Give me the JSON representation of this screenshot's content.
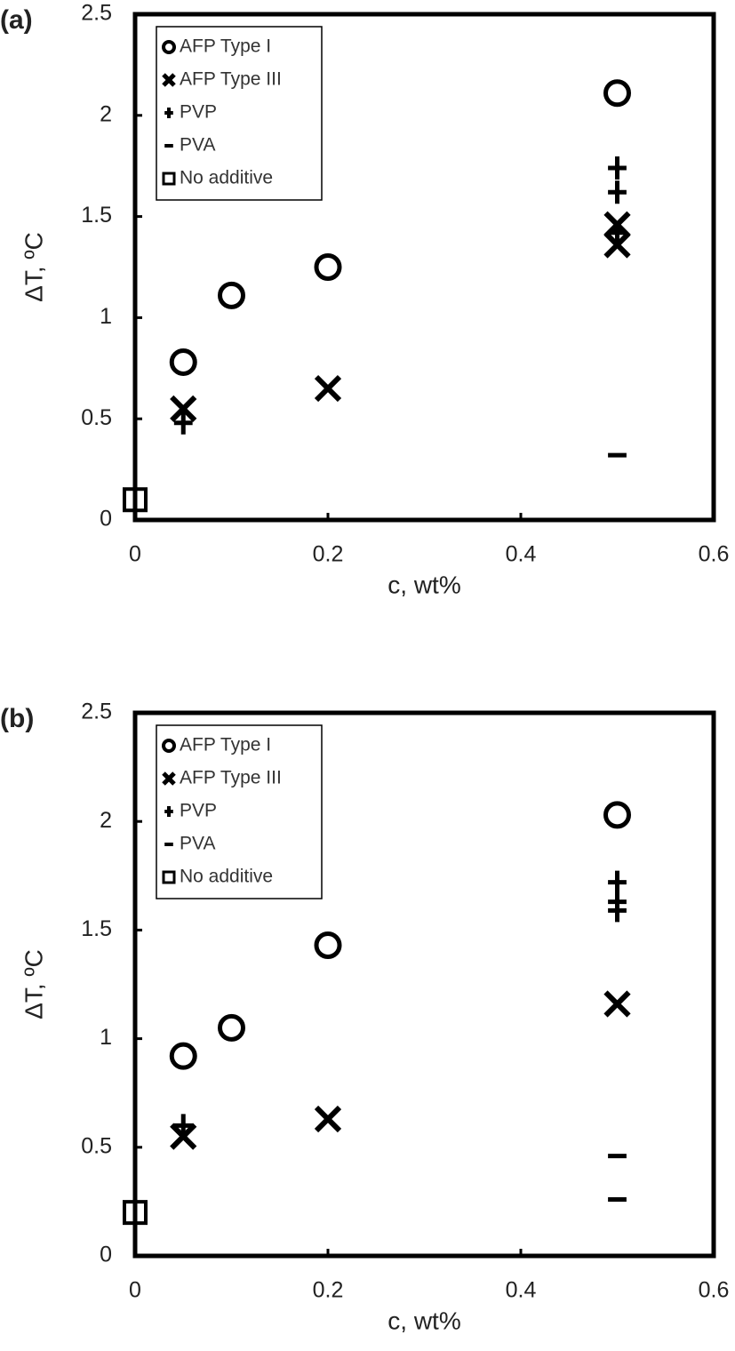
{
  "chart_data": [
    {
      "type": "scatter",
      "panel_label": "(a)",
      "x_label": "c, wt%",
      "y_label": "ΔT, ºC",
      "xlim": [
        0,
        0.6
      ],
      "xticks": [
        0,
        0.2,
        0.4,
        0.6
      ],
      "ylim": [
        0,
        2.5
      ],
      "yticks": [
        0,
        0.5,
        1,
        1.5,
        2,
        2.5
      ],
      "legend": "upper left",
      "series": [
        {
          "name": "AFP Type I",
          "marker": "circle",
          "color": "#000000",
          "x": [
            0.05,
            0.1,
            0.2,
            0.5
          ],
          "values": [
            0.78,
            1.11,
            1.25,
            2.11
          ]
        },
        {
          "name": "AFP Type III",
          "marker": "x",
          "color": "#000000",
          "x": [
            0.05,
            0.2,
            0.5,
            0.5
          ],
          "values": [
            0.55,
            0.65,
            1.46,
            1.36
          ]
        },
        {
          "name": "PVP",
          "marker": "plus",
          "color": "#000000",
          "x": [
            0.05,
            0.5,
            0.5,
            0.5
          ],
          "values": [
            0.48,
            1.74,
            1.62,
            1.42
          ]
        },
        {
          "name": "PVA",
          "marker": "minus",
          "color": "#000000",
          "x": [
            0.5
          ],
          "values": [
            0.32
          ]
        },
        {
          "name": "No additive",
          "marker": "square",
          "color": "#000000",
          "x": [
            0
          ],
          "values": [
            0.1
          ]
        }
      ]
    },
    {
      "type": "scatter",
      "panel_label": "(b)",
      "x_label": "c, wt%",
      "y_label": "ΔT, ºC",
      "xlim": [
        0,
        0.6
      ],
      "xticks": [
        0,
        0.2,
        0.4,
        0.6
      ],
      "ylim": [
        0,
        2.5
      ],
      "yticks": [
        0,
        0.5,
        1,
        1.5,
        2,
        2.5
      ],
      "legend": "upper left",
      "series": [
        {
          "name": "AFP Type I",
          "marker": "circle",
          "color": "#000000",
          "x": [
            0.05,
            0.1,
            0.2,
            0.5
          ],
          "values": [
            0.92,
            1.05,
            1.43,
            2.03
          ]
        },
        {
          "name": "AFP Type III",
          "marker": "x",
          "color": "#000000",
          "x": [
            0.05,
            0.2,
            0.5
          ],
          "values": [
            0.55,
            0.63,
            1.16
          ]
        },
        {
          "name": "PVP",
          "marker": "plus",
          "color": "#000000",
          "x": [
            0.05,
            0.5,
            0.5,
            0.5
          ],
          "values": [
            0.6,
            1.72,
            1.63,
            1.59
          ]
        },
        {
          "name": "PVA",
          "marker": "minus",
          "color": "#000000",
          "x": [
            0.5,
            0.5
          ],
          "values": [
            0.46,
            0.26
          ]
        },
        {
          "name": "No additive",
          "marker": "square",
          "color": "#000000",
          "x": [
            0
          ],
          "values": [
            0.2
          ]
        }
      ]
    }
  ]
}
